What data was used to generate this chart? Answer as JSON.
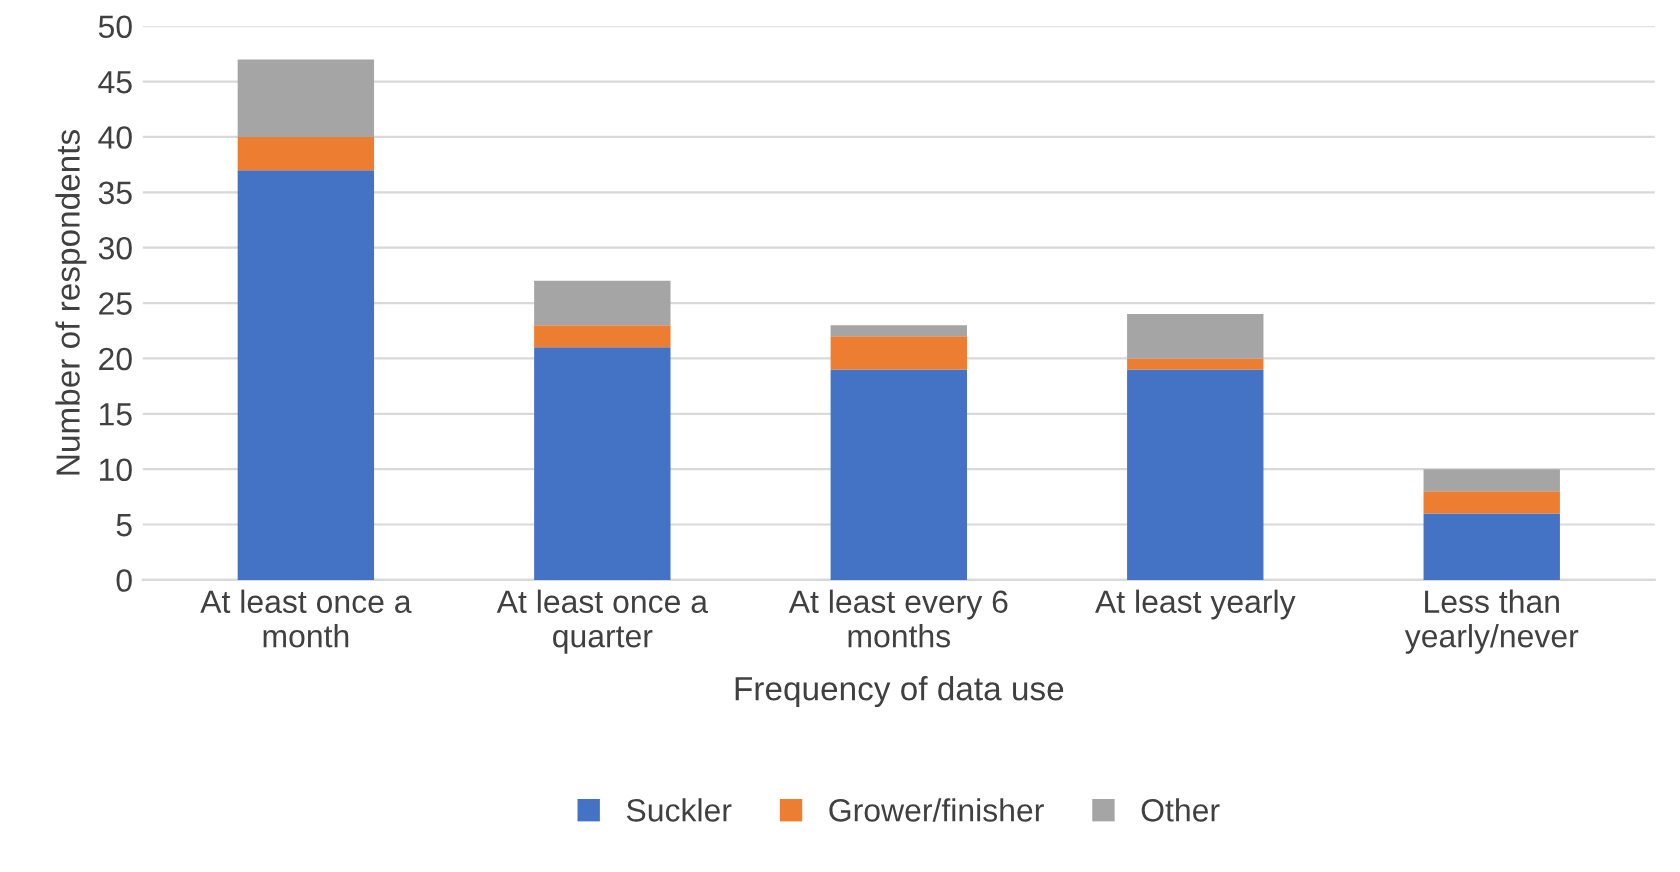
{
  "chart_data": {
    "type": "bar",
    "stacked": true,
    "xlabel": "Frequency of data use",
    "ylabel": "Number of respondents",
    "categories": [
      "At least once a month",
      "At least once a quarter",
      "At least every 6 months",
      "At least yearly",
      "Less than yearly/never"
    ],
    "series": [
      {
        "name": "Suckler",
        "color": "#4472c4",
        "values": [
          37,
          21,
          19,
          19,
          6
        ]
      },
      {
        "name": "Grower/finisher",
        "color": "#ed7d31",
        "values": [
          3,
          2,
          3,
          1,
          2
        ]
      },
      {
        "name": "Other",
        "color": "#a5a5a5",
        "values": [
          7,
          4,
          1,
          4,
          2
        ]
      }
    ],
    "ylim": [
      0,
      50
    ],
    "yticks": [
      0,
      5,
      10,
      15,
      20,
      25,
      30,
      35,
      40,
      45,
      50
    ],
    "grid": "y",
    "legend": "bottom"
  }
}
